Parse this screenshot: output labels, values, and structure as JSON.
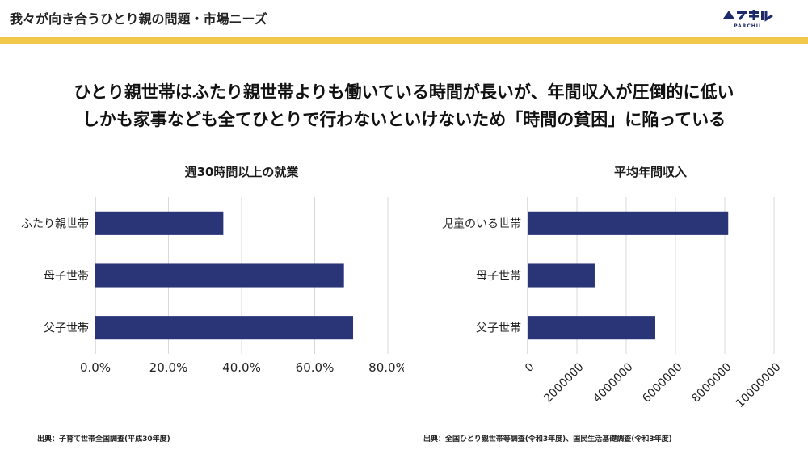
{
  "header": {
    "title": "我々が向き合うひとり親の問題・市場ニーズ"
  },
  "brand": {
    "name": "ペアチル",
    "sub": "PARCHIL"
  },
  "colors": {
    "accent": "#f2c84b",
    "bar": "#2a3577",
    "grid": "#d9d9d9",
    "brand": "#1f2a6b"
  },
  "headline": {
    "line1": "ひとり親世帯はふたり親世帯よりも働いている時間が長いが、年間収入が圧倒的に低い",
    "line2": "しかも家事なども全てひとりで行わないといけないため「時間の貧困」に陥っている"
  },
  "chart_data": [
    {
      "type": "bar",
      "orientation": "horizontal",
      "title": "週30時間以上の就業",
      "categories": [
        "ふたり親世帯",
        "母子世帯",
        "父子世帯"
      ],
      "values": [
        0.35,
        0.68,
        0.705
      ],
      "xlim": [
        0,
        0.8
      ],
      "ticks": [
        "0.0%",
        "20.0%",
        "40.0%",
        "60.0%",
        "80.0%"
      ],
      "tick_values": [
        0,
        0.2,
        0.4,
        0.6,
        0.8
      ],
      "grid": true,
      "source": "出典：子育て世帯全国調査(平成30年度)"
    },
    {
      "type": "bar",
      "orientation": "horizontal",
      "title": "平均年間収入",
      "categories": [
        "児童のいる世帯",
        "母子世帯",
        "父子世帯"
      ],
      "values": [
        8139000,
        2720000,
        5180000
      ],
      "xlim": [
        0,
        10000000
      ],
      "ticks": [
        "0",
        "2000000",
        "4000000",
        "6000000",
        "8000000",
        "10000000"
      ],
      "tick_values": [
        0,
        2000000,
        4000000,
        6000000,
        8000000,
        10000000
      ],
      "grid": true,
      "rotated_ticks": true,
      "source": "出典：全国ひとり親世帯等調査(令和3年度)、国民生活基礎調査(令和3年度)"
    }
  ]
}
